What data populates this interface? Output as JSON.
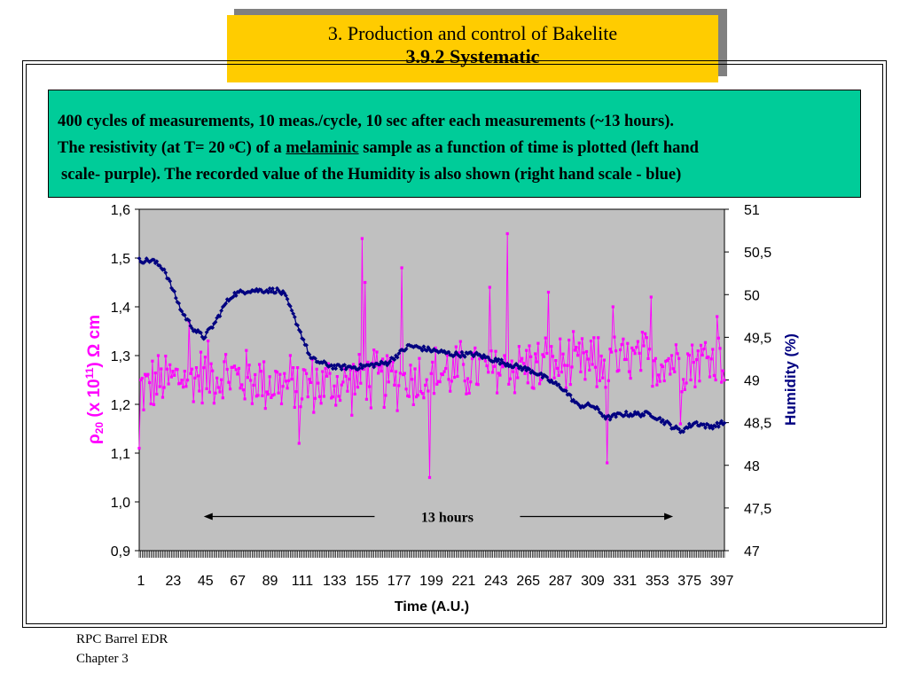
{
  "slide": {
    "title_line1": "3. Production and control of  Bakelite",
    "title_line2": "3.9.2 Systematic",
    "desc_line1": "400 cycles of measurements, 10 meas./cycle, 10 sec after each measurements (~13 hours).",
    "desc_line2_pre": "The resistivity (at T= 20 ",
    "desc_line2_deg": "o",
    "desc_line2_mid": "C) of a ",
    "desc_line2_underlined": "melaminic",
    "desc_line2_post": " sample as a function of time is plotted (left hand",
    "desc_line3": "scale- purple).  The recorded value of the Humidity is also shown (right hand scale - blue)",
    "footer_line1": "RPC Barrel EDR",
    "footer_line2": "Chapter 3"
  },
  "colors": {
    "title_bg": "#ffcc00",
    "desc_bg": "#00cc99",
    "plot_bg": "#c0c0c0",
    "resistivity": "#ff00ff",
    "humidity": "#000080"
  },
  "chart_data": {
    "type": "line",
    "xlabel": "Time (A.U.)",
    "ylabel_left": {
      "rho": "ρ",
      "sub": "20",
      "pre": " (x 10",
      "sup": "11",
      "post": ") Ω cm"
    },
    "ylabel_right": "Humidity (%)",
    "x_range": [
      1,
      400
    ],
    "x_tick_labels": [
      "1",
      "23",
      "45",
      "67",
      "89",
      "111",
      "133",
      "155",
      "177",
      "199",
      "221",
      "243",
      "265",
      "287",
      "309",
      "331",
      "353",
      "375",
      "397"
    ],
    "x_tick_values": [
      1,
      23,
      45,
      67,
      89,
      111,
      133,
      155,
      177,
      199,
      221,
      243,
      265,
      287,
      309,
      331,
      353,
      375,
      397
    ],
    "y_left_range": [
      0.9,
      1.6
    ],
    "y_left_ticks": [
      "0,9",
      "1,0",
      "1,1",
      "1,2",
      "1,3",
      "1,4",
      "1,5",
      "1,6"
    ],
    "y_right_range": [
      47,
      51
    ],
    "y_right_ticks": [
      "47",
      "47,5",
      "48",
      "48,5",
      "49",
      "49,5",
      "50",
      "50,5",
      "51"
    ],
    "annotation": {
      "text": "13 hours",
      "x_start": 45,
      "x_end": 365,
      "y_left": 0.97
    },
    "series": [
      {
        "name": "Resistivity",
        "axis": "left",
        "marker": "square",
        "base_points": {
          "x": [
            1,
            20,
            40,
            60,
            80,
            100,
            120,
            140,
            160,
            180,
            200,
            220,
            240,
            260,
            280,
            300,
            320,
            340,
            360,
            380,
            400
          ],
          "y": [
            1.23,
            1.25,
            1.26,
            1.26,
            1.25,
            1.24,
            1.24,
            1.24,
            1.25,
            1.25,
            1.26,
            1.27,
            1.27,
            1.28,
            1.28,
            1.28,
            1.28,
            1.29,
            1.29,
            1.29,
            1.3
          ]
        },
        "amplitude": 0.06,
        "spikes": [
          {
            "x": 1,
            "y": 1.11
          },
          {
            "x": 35,
            "y": 1.37
          },
          {
            "x": 48,
            "y": 1.33
          },
          {
            "x": 110,
            "y": 1.12
          },
          {
            "x": 153,
            "y": 1.54
          },
          {
            "x": 155,
            "y": 1.45
          },
          {
            "x": 180,
            "y": 1.48
          },
          {
            "x": 199,
            "y": 1.05
          },
          {
            "x": 252,
            "y": 1.55
          },
          {
            "x": 240,
            "y": 1.44
          },
          {
            "x": 280,
            "y": 1.43
          },
          {
            "x": 320,
            "y": 1.08
          },
          {
            "x": 324,
            "y": 1.4
          },
          {
            "x": 350,
            "y": 1.42
          },
          {
            "x": 370,
            "y": 1.16
          },
          {
            "x": 395,
            "y": 1.38
          }
        ]
      },
      {
        "name": "Humidity",
        "axis": "right",
        "marker": "diamond",
        "base_points": {
          "x": [
            1,
            10,
            18,
            30,
            38,
            45,
            52,
            60,
            65,
            75,
            85,
            95,
            100,
            110,
            118,
            125,
            135,
            150,
            170,
            185,
            200,
            215,
            230,
            250,
            270,
            290,
            300,
            310,
            320,
            330,
            340,
            350,
            360,
            370,
            380,
            390,
            400
          ],
          "y": [
            50.4,
            50.4,
            50.3,
            49.8,
            49.6,
            49.5,
            49.65,
            49.9,
            50.0,
            50.05,
            50.05,
            50.05,
            50.0,
            49.6,
            49.25,
            49.2,
            49.15,
            49.15,
            49.2,
            49.4,
            49.35,
            49.3,
            49.3,
            49.2,
            49.1,
            48.9,
            48.7,
            48.7,
            48.55,
            48.6,
            48.6,
            48.6,
            48.5,
            48.4,
            48.5,
            48.45,
            48.5
          ]
        },
        "amplitude": 0.03
      }
    ]
  }
}
